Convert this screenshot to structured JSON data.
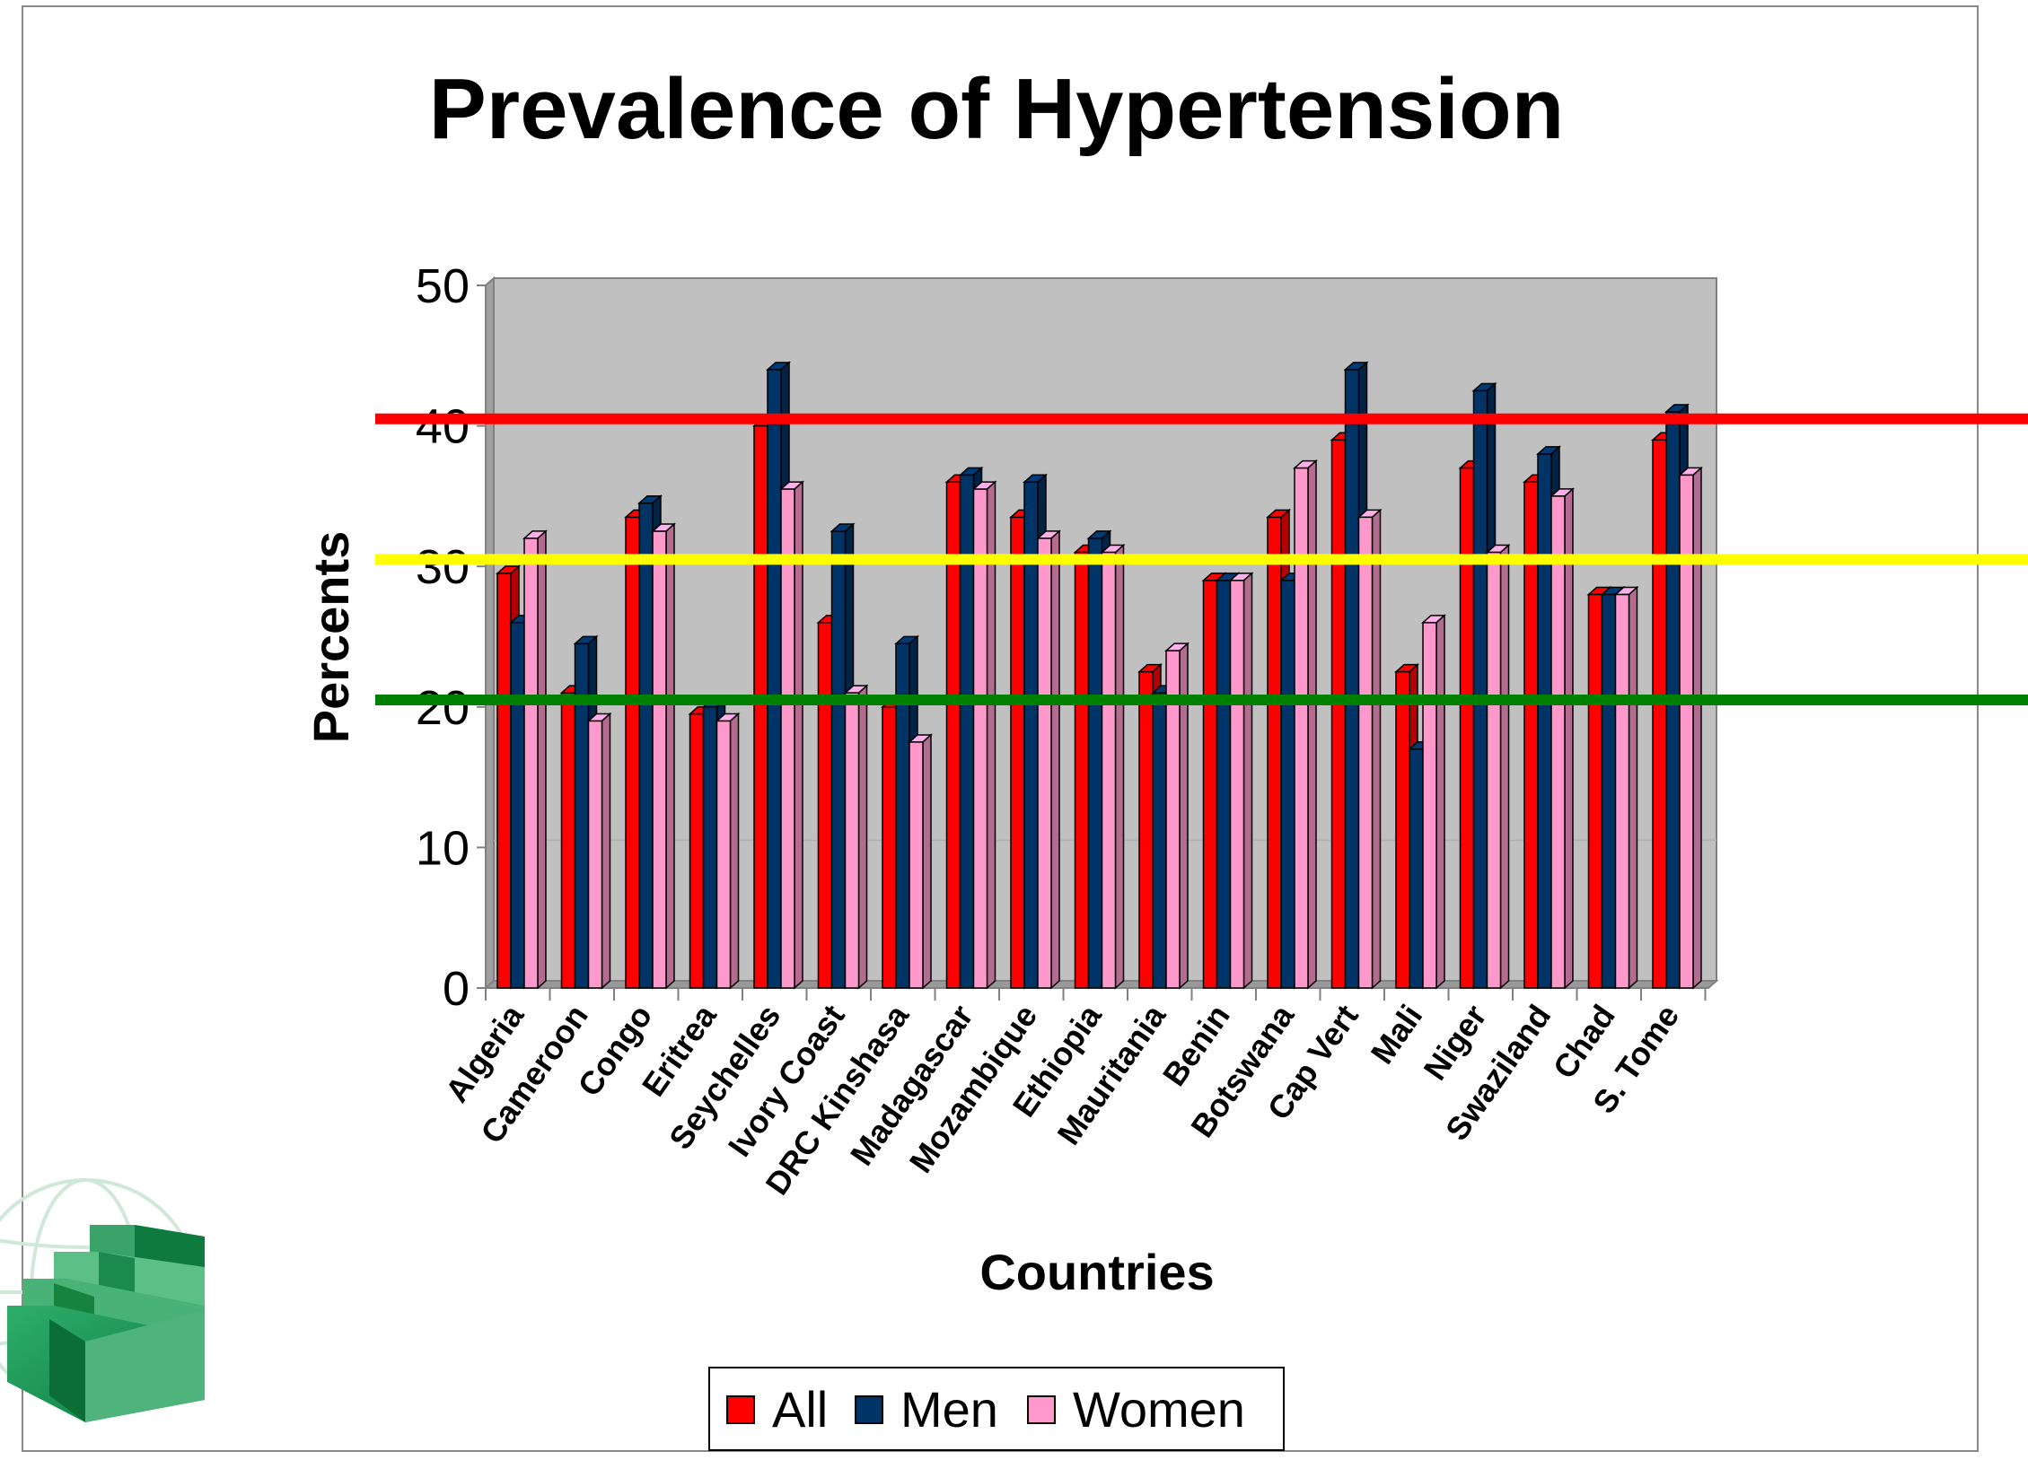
{
  "chart_data": {
    "type": "bar",
    "title": "Prevalence of Hypertension",
    "xlabel": "Countries",
    "ylabel": "Percents",
    "ylim": [
      0,
      50
    ],
    "yticks": [
      0,
      10,
      20,
      30,
      40,
      50
    ],
    "grid": true,
    "legend_position": "bottom",
    "categories": [
      "Algeria",
      "Cameroon",
      "Congo",
      "Eritrea",
      "Seychelles",
      "Ivory Coast",
      "DRC Kinshasa",
      "Madagascar",
      "Mozambique",
      "Ethiopia",
      "Mauritania",
      "Benin",
      "Botswana",
      "Cap Vert",
      "Mali",
      "Niger",
      "Swaziland",
      "Chad",
      "S. Tome"
    ],
    "series": [
      {
        "name": "All",
        "color": "#ff0000",
        "values": [
          29.5,
          21,
          33.5,
          19.5,
          40,
          26,
          20,
          36,
          33.5,
          31,
          22.5,
          29,
          33.5,
          39,
          22.5,
          37,
          36,
          28,
          39
        ]
      },
      {
        "name": "Men",
        "color": "#003366",
        "values": [
          26,
          24.5,
          34.5,
          20,
          44,
          32.5,
          24.5,
          36.5,
          36,
          32,
          21,
          29,
          29,
          44,
          17,
          42.5,
          38,
          28,
          41
        ]
      },
      {
        "name": "Women",
        "color": "#ff99cc",
        "values": [
          32,
          19,
          32.5,
          19,
          35.5,
          21,
          17.5,
          35.5,
          32,
          31,
          24,
          29,
          37,
          33.5,
          26,
          31,
          35,
          28,
          36.5
        ]
      }
    ],
    "reference_lines": [
      {
        "value": 40.5,
        "color": "#ff0000"
      },
      {
        "value": 30.5,
        "color": "#ffff00"
      },
      {
        "value": 20.5,
        "color": "#008000"
      }
    ]
  },
  "logo": {
    "name": "stairs-globe-logo"
  }
}
